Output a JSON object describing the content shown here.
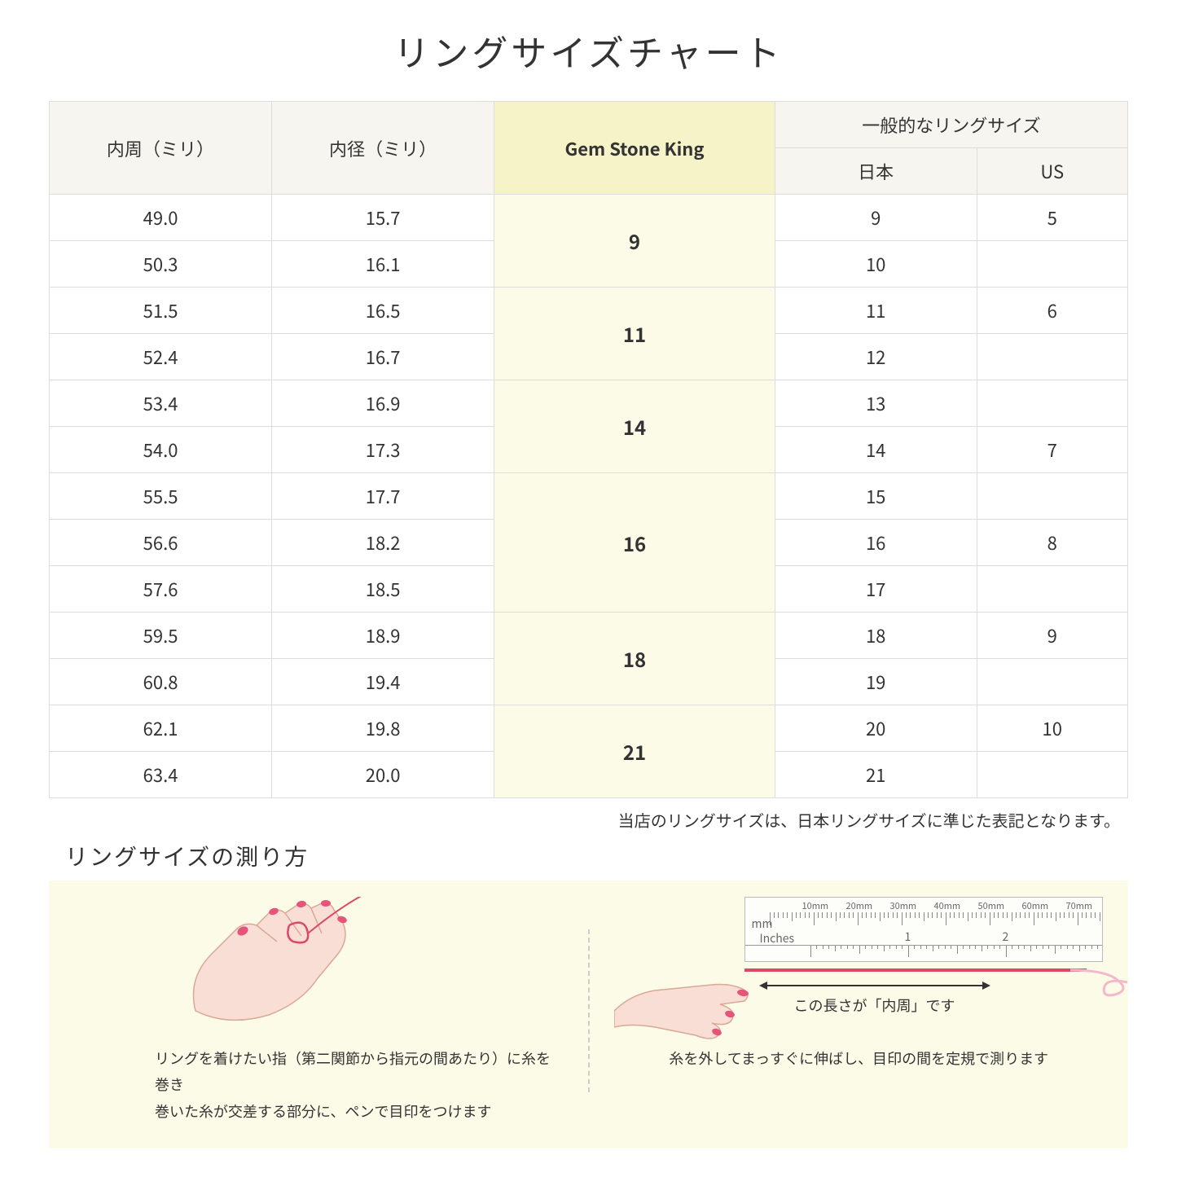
{
  "title": "リングサイズチャート",
  "table": {
    "headers": {
      "circumference": "内周（ミリ）",
      "diameter": "内径（ミリ）",
      "gsk": "Gem Stone King",
      "general_group": "一般的なリングサイズ",
      "japan": "日本",
      "us": "US"
    },
    "groups": [
      {
        "gsk": "9",
        "rows": [
          {
            "c": "49.0",
            "d": "15.7",
            "jp": "9",
            "us": "5"
          },
          {
            "c": "50.3",
            "d": "16.1",
            "jp": "10",
            "us": ""
          }
        ]
      },
      {
        "gsk": "11",
        "rows": [
          {
            "c": "51.5",
            "d": "16.5",
            "jp": "11",
            "us": "6"
          },
          {
            "c": "52.4",
            "d": "16.7",
            "jp": "12",
            "us": ""
          }
        ]
      },
      {
        "gsk": "14",
        "rows": [
          {
            "c": "53.4",
            "d": "16.9",
            "jp": "13",
            "us": ""
          },
          {
            "c": "54.0",
            "d": "17.3",
            "jp": "14",
            "us": "7"
          }
        ]
      },
      {
        "gsk": "16",
        "rows": [
          {
            "c": "55.5",
            "d": "17.7",
            "jp": "15",
            "us": ""
          },
          {
            "c": "56.6",
            "d": "18.2",
            "jp": "16",
            "us": "8"
          },
          {
            "c": "57.6",
            "d": "18.5",
            "jp": "17",
            "us": ""
          }
        ]
      },
      {
        "gsk": "18",
        "rows": [
          {
            "c": "59.5",
            "d": "18.9",
            "jp": "18",
            "us": "9"
          },
          {
            "c": "60.8",
            "d": "19.4",
            "jp": "19",
            "us": ""
          }
        ]
      },
      {
        "gsk": "21",
        "rows": [
          {
            "c": "62.1",
            "d": "19.8",
            "jp": "20",
            "us": "10"
          },
          {
            "c": "63.4",
            "d": "20.0",
            "jp": "21",
            "us": ""
          }
        ]
      }
    ]
  },
  "note": "当店のリングサイズは、日本リングサイズに準じた表記となります。",
  "howto": {
    "title": "リングサイズの測り方",
    "step1_caption_line1": "リングを着けたい指（第二関節から指元の間あたり）に糸を巻き",
    "step1_caption_line2": "巻いた糸が交差する部分に、ペンで目印をつけます",
    "step2_arrow_caption": "この長さが「内周」です",
    "step2_caption": "糸を外してまっすぐに伸ばし、目印の間を定規で測ります",
    "ruler": {
      "mm_label": "mm",
      "inches_label": "Inches",
      "mm_ticks": [
        "10mm",
        "20mm",
        "30mm",
        "40mm",
        "50mm",
        "60mm",
        "70mm"
      ],
      "inch_marks": [
        "1",
        "2"
      ]
    }
  },
  "colors": {
    "header_bg": "#f7f5f0",
    "gsk_header_bg": "#f5f3c7",
    "gsk_cell_bg": "#fcfbe8",
    "howto_bg": "#fcfbe8",
    "hand_fill": "#f9ded6",
    "hand_stroke": "#d9a896",
    "nail": "#e6547a",
    "thread": "#d94a6a",
    "border": "#dddddd"
  }
}
